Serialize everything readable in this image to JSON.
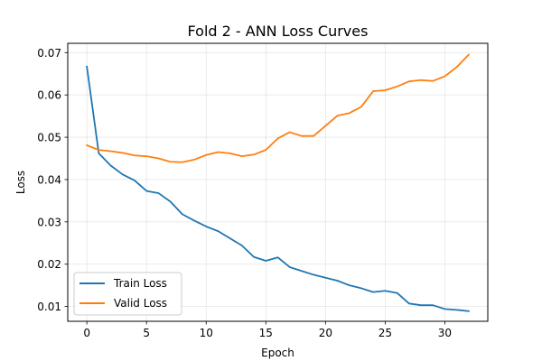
{
  "chart_data": {
    "type": "line",
    "title": "Fold 2 - ANN Loss Curves",
    "xlabel": "Epoch",
    "ylabel": "Loss",
    "xlim": [
      -1.6,
      33.6
    ],
    "ylim": [
      0.0065,
      0.0722
    ],
    "xticks": [
      0,
      5,
      10,
      15,
      20,
      25,
      30
    ],
    "yticks": [
      0.01,
      0.02,
      0.03,
      0.04,
      0.05,
      0.06,
      0.07
    ],
    "grid": true,
    "legend_position": "lower-left",
    "x": [
      0,
      1,
      2,
      3,
      4,
      5,
      6,
      7,
      8,
      9,
      10,
      11,
      12,
      13,
      14,
      15,
      16,
      17,
      18,
      19,
      20,
      21,
      22,
      23,
      24,
      25,
      26,
      27,
      28,
      29,
      30,
      31,
      32
    ],
    "series": [
      {
        "name": "Train Loss",
        "color": "#1f77b4",
        "values": [
          0.0667,
          0.0462,
          0.0433,
          0.0412,
          0.0398,
          0.0373,
          0.0368,
          0.0348,
          0.0318,
          0.0303,
          0.0289,
          0.0278,
          0.0261,
          0.0244,
          0.0217,
          0.0208,
          0.0216,
          0.0193,
          0.0184,
          0.0175,
          0.0168,
          0.0161,
          0.015,
          0.0143,
          0.0134,
          0.0137,
          0.0132,
          0.0107,
          0.0103,
          0.0103,
          0.0094,
          0.0092,
          0.0089
        ]
      },
      {
        "name": "Valid Loss",
        "color": "#ff7f0e",
        "values": [
          0.0481,
          0.047,
          0.0467,
          0.0463,
          0.0457,
          0.0455,
          0.045,
          0.0442,
          0.0441,
          0.0447,
          0.0458,
          0.0465,
          0.0462,
          0.0455,
          0.0459,
          0.047,
          0.0497,
          0.0512,
          0.0503,
          0.0503,
          0.0527,
          0.0551,
          0.0557,
          0.0572,
          0.0609,
          0.0611,
          0.062,
          0.0632,
          0.0635,
          0.0633,
          0.0644,
          0.0666,
          0.0695
        ]
      }
    ]
  }
}
